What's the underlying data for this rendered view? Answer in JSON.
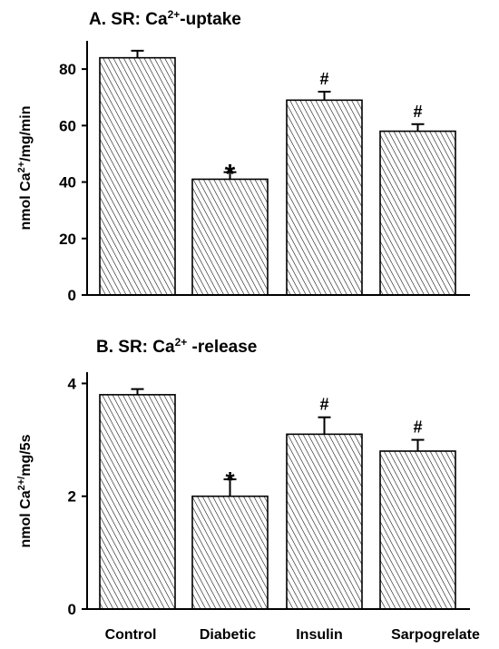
{
  "chart_data": [
    {
      "type": "bar",
      "title_prefix": "A. SR: Ca",
      "title_sup": "2+",
      "title_suffix": "-uptake",
      "ylabel_prefix": "nmol Ca",
      "ylabel_sup": "2+",
      "ylabel_suffix": "/mg/min",
      "categories": [
        "Control",
        "Diabetic",
        "Insulin",
        "Sarpogrelate"
      ],
      "values": [
        84,
        41,
        69,
        58
      ],
      "errors": [
        2.5,
        2.5,
        3,
        2.5
      ],
      "significance": [
        "",
        "*",
        "#",
        "#"
      ],
      "ylim": [
        0,
        90
      ],
      "yticks": [
        0,
        20,
        40,
        60,
        80
      ],
      "ytick_labels": [
        "0",
        "20",
        "40",
        "60",
        "80"
      ],
      "show_category_labels": false
    },
    {
      "type": "bar",
      "title_prefix": "B. SR: Ca",
      "title_sup": "2+",
      "title_suffix": " -release",
      "ylabel_prefix": "nmol Ca",
      "ylabel_sup": "2+/",
      "ylabel_suffix": "mg/5s",
      "categories": [
        "Control",
        "Diabetic",
        "Insulin",
        "Sarpogrelate"
      ],
      "values": [
        3.8,
        2.0,
        3.1,
        2.8
      ],
      "errors": [
        0.1,
        0.3,
        0.3,
        0.2
      ],
      "significance": [
        "",
        "*",
        "#",
        "#"
      ],
      "ylim": [
        0,
        4.2
      ],
      "yticks": [
        0,
        2,
        4
      ],
      "ytick_labels": [
        "0",
        "2",
        "4"
      ],
      "show_category_labels": true
    }
  ],
  "colors": {
    "bar_fill": "#ffffff",
    "hatch": "#000000",
    "axis": "#000000"
  }
}
